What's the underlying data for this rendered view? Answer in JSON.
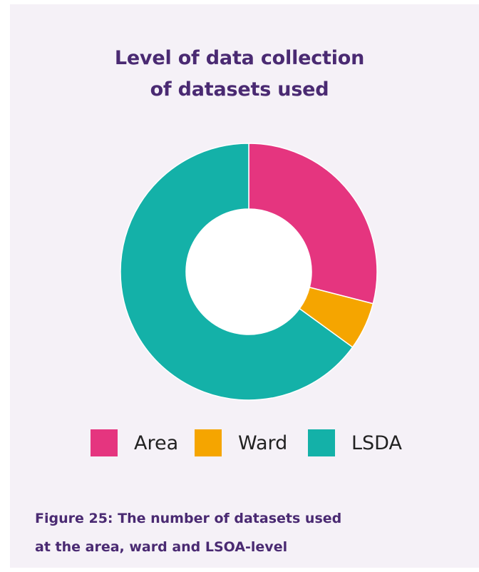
{
  "chart_data": {
    "type": "pie",
    "title_lines": [
      "Level of data collection",
      "of datasets used"
    ],
    "categories": [
      "Area",
      "Ward",
      "LSDA"
    ],
    "values": [
      29,
      6,
      65
    ],
    "colors": [
      "#e5357f",
      "#f5a500",
      "#14b1a8"
    ],
    "legend_position": "bottom"
  },
  "caption_lines": [
    "Figure 25: The number of datasets used",
    "at the area, ward and LSOA-level"
  ]
}
